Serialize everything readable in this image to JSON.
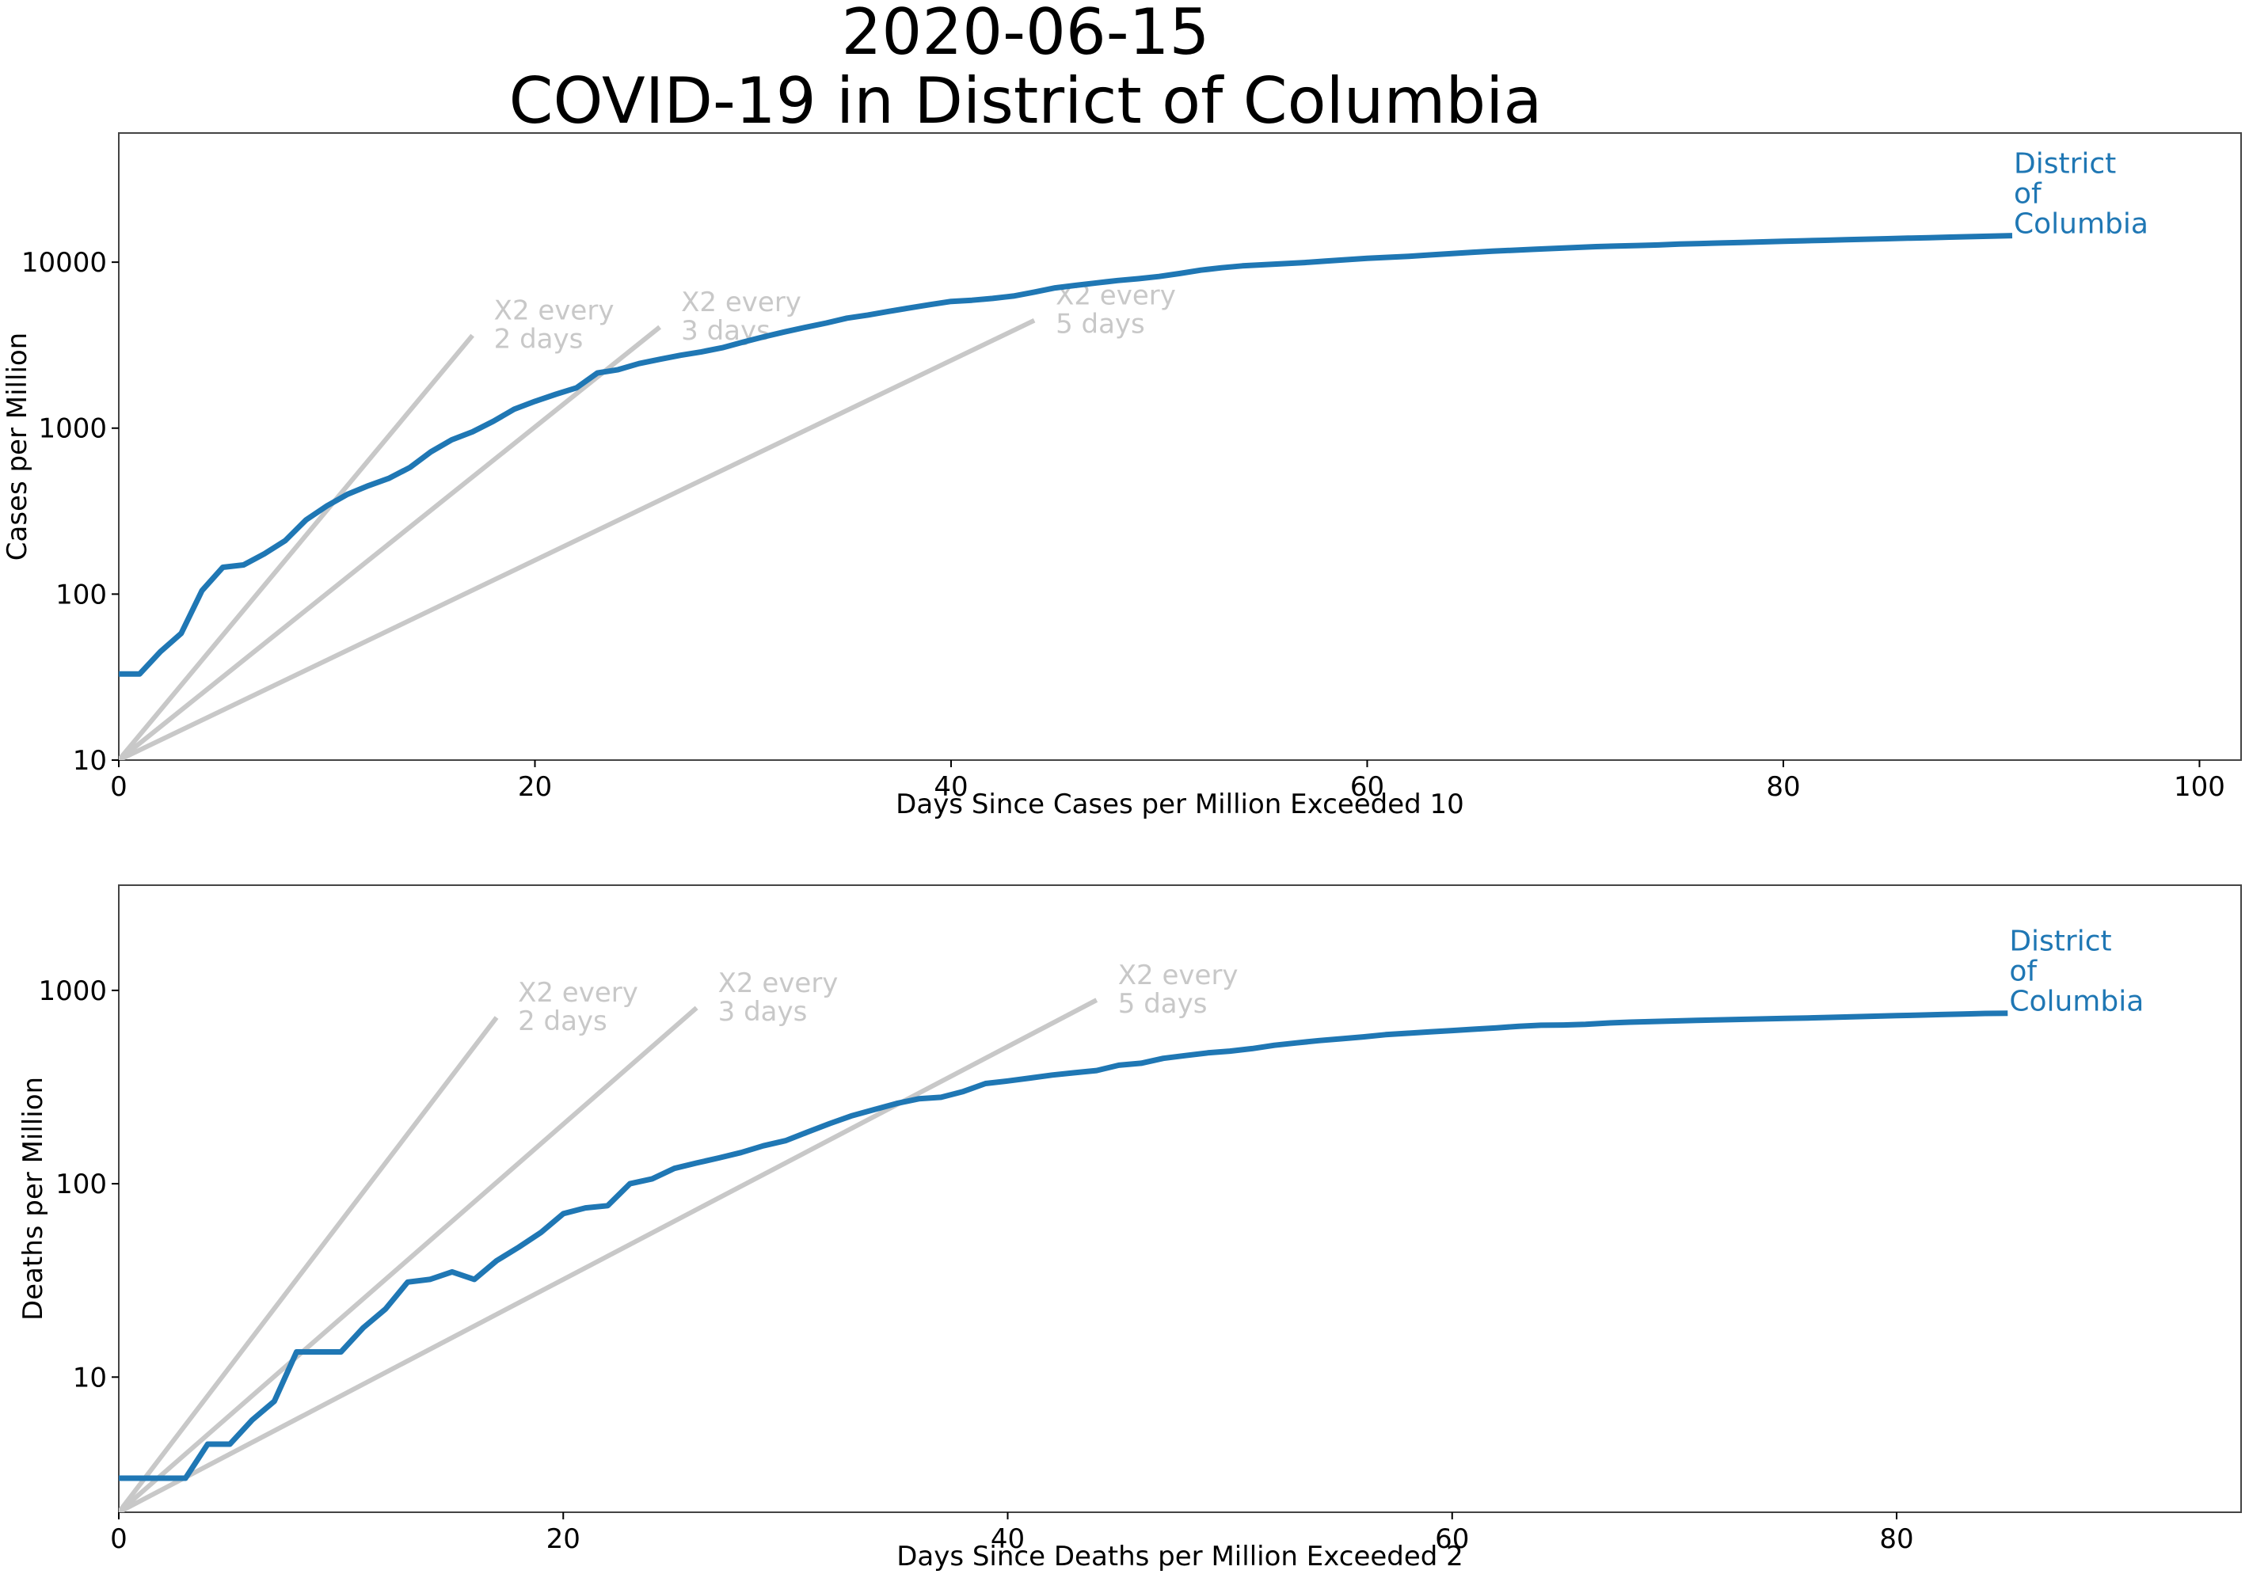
{
  "figure": {
    "date": "2020-06-15",
    "title": "COVID-19 in District of Columbia"
  },
  "chart_data": [
    {
      "type": "line",
      "yscale": "log",
      "xlabel": "Days Since Cases per Million Exceeded 10",
      "ylabel": "Cases per Million",
      "xlim": [
        0,
        102
      ],
      "ylim": [
        10,
        60000
      ],
      "xticks": [
        0,
        20,
        40,
        60,
        80,
        100
      ],
      "yticks": [
        10,
        100,
        1000,
        10000
      ],
      "grid": false,
      "series": [
        {
          "name": "District of Columbia",
          "label_lines": [
            "District",
            "of",
            "Columbia"
          ],
          "color": "#1f77b4",
          "x": [
            0,
            1,
            2,
            3,
            4,
            5,
            6,
            7,
            8,
            9,
            10,
            11,
            12,
            13,
            14,
            15,
            16,
            17,
            18,
            19,
            20,
            21,
            22,
            23,
            24,
            25,
            26,
            27,
            28,
            29,
            30,
            31,
            32,
            33,
            34,
            35,
            36,
            37,
            38,
            39,
            40,
            41,
            42,
            43,
            44,
            45,
            46,
            47,
            48,
            49,
            50,
            51,
            52,
            53,
            54,
            55,
            56,
            57,
            58,
            59,
            60,
            61,
            62,
            63,
            64,
            65,
            66,
            67,
            68,
            69,
            70,
            71,
            72,
            73,
            74,
            75,
            76,
            77,
            78,
            79,
            80,
            81,
            82,
            83,
            84,
            85,
            86,
            87,
            88,
            89,
            90,
            91
          ],
          "y": [
            33,
            33,
            45,
            58,
            105,
            145,
            150,
            175,
            210,
            280,
            340,
            400,
            450,
            500,
            580,
            720,
            850,
            950,
            1100,
            1300,
            1450,
            1600,
            1750,
            2150,
            2250,
            2450,
            2600,
            2750,
            2880,
            3050,
            3300,
            3550,
            3800,
            4050,
            4300,
            4600,
            4800,
            5050,
            5300,
            5550,
            5800,
            5900,
            6050,
            6250,
            6600,
            7000,
            7250,
            7500,
            7750,
            7950,
            8200,
            8550,
            8950,
            9250,
            9500,
            9650,
            9800,
            9950,
            10150,
            10350,
            10550,
            10700,
            10850,
            11050,
            11250,
            11450,
            11650,
            11800,
            11950,
            12100,
            12250,
            12400,
            12500,
            12600,
            12700,
            12850,
            12950,
            13050,
            13150,
            13250,
            13350,
            13450,
            13550,
            13650,
            13750,
            13850,
            13950,
            14050,
            14150,
            14250,
            14350,
            14450
          ]
        }
      ],
      "guides": [
        {
          "label_lines": [
            "X2 every",
            "2 days"
          ],
          "x_end": 17
        },
        {
          "label_lines": [
            "X2 every",
            "3 days"
          ],
          "x_end": 26
        },
        {
          "label_lines": [
            "X2 every",
            "5 days"
          ],
          "x_end": 44
        }
      ]
    },
    {
      "type": "line",
      "yscale": "log",
      "xlabel": "Days Since Deaths per Million Exceeded 2",
      "ylabel": "Deaths per Million",
      "xlim": [
        0,
        95.5
      ],
      "ylim": [
        2,
        3500
      ],
      "xticks": [
        0,
        20,
        40,
        60,
        80
      ],
      "yticks": [
        10,
        100,
        1000
      ],
      "grid": false,
      "series": [
        {
          "name": "District of Columbia",
          "label_lines": [
            "District",
            "of",
            "Columbia"
          ],
          "color": "#1f77b4",
          "x": [
            0,
            1,
            2,
            3,
            4,
            5,
            6,
            7,
            8,
            9,
            10,
            11,
            12,
            13,
            14,
            15,
            16,
            17,
            18,
            19,
            20,
            21,
            22,
            23,
            24,
            25,
            26,
            27,
            28,
            29,
            30,
            31,
            32,
            33,
            34,
            35,
            36,
            37,
            38,
            39,
            40,
            41,
            42,
            43,
            44,
            45,
            46,
            47,
            48,
            49,
            50,
            51,
            52,
            53,
            54,
            55,
            56,
            57,
            58,
            59,
            60,
            61,
            62,
            63,
            64,
            65,
            66,
            67,
            68,
            69,
            70,
            71,
            72,
            73,
            74,
            75,
            76,
            77,
            78,
            79,
            80,
            81,
            82,
            83,
            84,
            85
          ],
          "y": [
            3,
            3,
            3,
            3,
            4.5,
            4.5,
            6,
            7.5,
            13.5,
            13.5,
            13.5,
            18,
            22.5,
            31,
            32,
            35,
            32,
            40,
            47,
            56,
            70,
            75,
            77,
            100,
            106,
            120,
            128,
            136,
            145,
            157,
            167,
            185,
            205,
            225,
            242,
            260,
            275,
            280,
            300,
            330,
            340,
            352,
            365,
            375,
            385,
            410,
            420,
            445,
            460,
            475,
            485,
            500,
            520,
            535,
            550,
            562,
            575,
            590,
            600,
            610,
            620,
            630,
            640,
            652,
            660,
            662,
            668,
            678,
            685,
            690,
            695,
            700,
            704,
            708,
            712,
            716,
            720,
            725,
            730,
            735,
            740,
            745,
            750,
            755,
            760,
            762
          ]
        }
      ],
      "guides": [
        {
          "label_lines": [
            "X2 every",
            "2 days"
          ],
          "x_end": 17
        },
        {
          "label_lines": [
            "X2 every",
            "3 days"
          ],
          "x_end": 26
        },
        {
          "label_lines": [
            "X2 every",
            "5 days"
          ],
          "x_end": 44
        }
      ]
    }
  ]
}
